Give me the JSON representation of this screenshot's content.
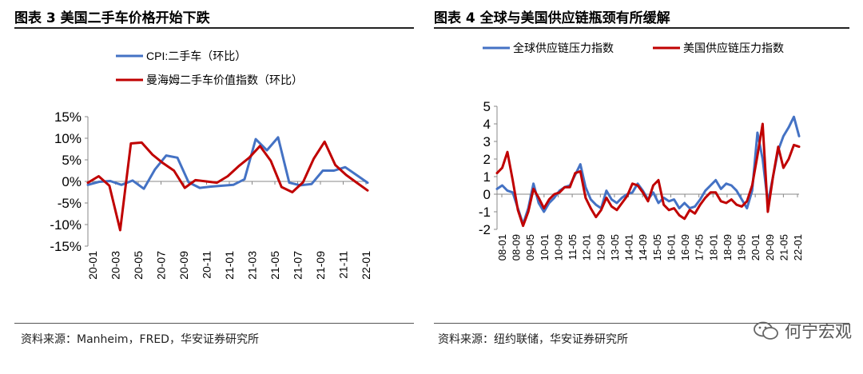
{
  "left_panel": {
    "title": "图表 3  美国二手车价格开始下跌",
    "source": "资料来源：Manheim，FRED，华安证券研究所"
  },
  "right_panel": {
    "title": "图表 4  全球与美国供应链瓶颈有所缓解",
    "source": "资料来源：纽约联储，华安证券研究所"
  },
  "watermark": "何宁宏观",
  "chart_data": [
    {
      "type": "line",
      "title": "美国二手车价格开始下跌",
      "ylim": [
        -15,
        15
      ],
      "yticks": [
        -15,
        -10,
        -5,
        0,
        5,
        10,
        15
      ],
      "ytick_labels": [
        "-15%",
        "-10%",
        "-5%",
        "0%",
        "5%",
        "10%",
        "15%"
      ],
      "xtick_labels": [
        "20-01",
        "20-03",
        "20-05",
        "20-07",
        "20-09",
        "20-11",
        "21-01",
        "21-03",
        "21-05",
        "21-07",
        "21-09",
        "21-11",
        "22-01"
      ],
      "legend_position": "top",
      "series": [
        {
          "name": "CPI:二手车（环比）",
          "color": "#4472C4",
          "values": [
            -0.8,
            -0.1,
            0.1,
            -0.8,
            0.2,
            -1.7,
            2.8,
            6.0,
            5.5,
            -0.2,
            -1.5,
            -1.2,
            -1,
            -0.8,
            0.5,
            9.8,
            7.2,
            10.2,
            -0.3,
            -0.9,
            -0.6,
            2.5,
            2.5,
            3.3,
            1.5,
            -0.3
          ]
        },
        {
          "name": "曼海姆二手车价值指数（环比）",
          "color": "#C00000",
          "values": [
            -0.3,
            1.2,
            -1,
            -11.3,
            8.8,
            9.0,
            6.2,
            4.2,
            2.5,
            -1.5,
            0.3,
            0,
            -0.3,
            1.2,
            3.5,
            5.5,
            8.2,
            4.8,
            -1.3,
            -2.5,
            -0.2,
            5.3,
            9.2,
            3.8,
            1.5,
            -0.3,
            -2.1
          ]
        }
      ]
    },
    {
      "type": "line",
      "title": "全球与美国供应链瓶颈有所缓解",
      "ylim": [
        -2,
        5
      ],
      "yticks": [
        -2,
        -1,
        0,
        1,
        2,
        3,
        4,
        5
      ],
      "ytick_labels": [
        "-2",
        "-1",
        "0",
        "1",
        "2",
        "3",
        "4",
        "5"
      ],
      "xtick_labels": [
        "08-01",
        "08-09",
        "09-05",
        "10-01",
        "10-09",
        "11-05",
        "12-01",
        "12-09",
        "13-05",
        "14-01",
        "14-09",
        "15-05",
        "16-01",
        "16-09",
        "17-05",
        "18-01",
        "18-09",
        "19-05",
        "20-01",
        "20-09",
        "21-05",
        "22-01"
      ],
      "legend_position": "top",
      "series": [
        {
          "name": "全球供应链压力指数",
          "color": "#4472C4",
          "values": [
            0.3,
            0.5,
            0.2,
            0.1,
            -0.8,
            -1.7,
            -0.8,
            0.6,
            -0.5,
            -1.0,
            -0.5,
            -0.2,
            0.2,
            0.4,
            0.5,
            1.1,
            1.7,
            0.4,
            -0.3,
            -0.6,
            -0.8,
            0.2,
            -0.3,
            -0.5,
            -0.2,
            0.0,
            0.1,
            0.6,
            0.2,
            -0.3,
            0.1,
            -0.5,
            -0.2,
            -0.4,
            -0.3,
            -0.8,
            -0.5,
            -0.8,
            -0.7,
            -0.3,
            0.2,
            0.5,
            0.8,
            0.3,
            0.6,
            0.5,
            0.2,
            -0.3,
            -0.8,
            0.2,
            3.5,
            2.0,
            -0.5,
            1.0,
            2.5,
            3.3,
            3.8,
            4.4,
            3.3
          ]
        },
        {
          "name": "美国供应链压力指数",
          "color": "#C00000",
          "values": [
            1.2,
            1.5,
            2.4,
            0.8,
            -0.9,
            -1.8,
            -1.0,
            0.3,
            -0.2,
            -0.8,
            -0.3,
            0.0,
            0.1,
            0.4,
            0.4,
            1.2,
            1.3,
            -0.2,
            -0.8,
            -1.3,
            -0.9,
            -0.2,
            -0.7,
            -0.9,
            -0.5,
            -0.1,
            0.6,
            0.5,
            0.1,
            -0.4,
            0.5,
            0.8,
            -0.6,
            -0.9,
            -0.8,
            -1.2,
            -1.4,
            -0.9,
            -1.1,
            -0.6,
            -0.2,
            0.1,
            0.1,
            -0.4,
            -0.5,
            -0.3,
            -0.6,
            -0.7,
            -0.4,
            0.5,
            2.2,
            4.0,
            -1.0,
            1.0,
            2.7,
            1.5,
            2.0,
            2.8,
            2.7
          ]
        }
      ]
    }
  ]
}
